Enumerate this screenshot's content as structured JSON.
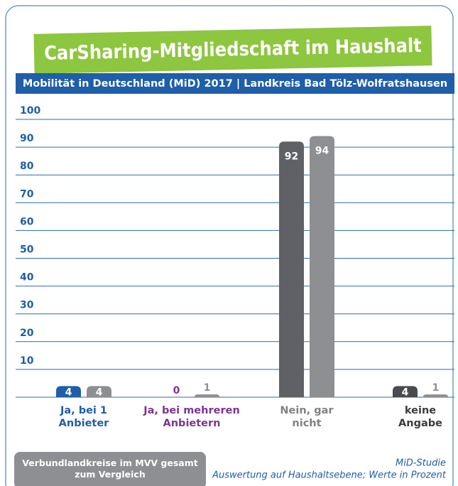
{
  "chart_data": {
    "type": "bar",
    "title": "CarSharing-Mitgliedschaft im Haushalt",
    "subtitle": "Mobilität in Deutschland (MiD) 2017 | Landkreis Bad Tölz-Wolfratshausen",
    "categories": [
      "Ja, bei 1 Anbieter",
      "Ja, bei mehreren Anbietern",
      "Nein, gar nicht",
      "keine Angabe"
    ],
    "category_colors": [
      "#1f5ea8",
      "#7b3594",
      "#808185",
      "#3c3c3e"
    ],
    "series": [
      {
        "colors": [
          "#1f5ea8",
          "#7b3594",
          "#5f6166",
          "#4a4b4e"
        ],
        "values": [
          4,
          0,
          92,
          4
        ]
      },
      {
        "name": "Verbundlandkreise im MVV gesamt zum Vergleich",
        "color": "#8e8f92",
        "values": [
          4,
          1,
          94,
          1
        ]
      }
    ],
    "ylim": [
      0,
      100
    ],
    "yticks": [
      10,
      20,
      30,
      40,
      50,
      60,
      70,
      80,
      90,
      100
    ],
    "grid": true,
    "source": "MiD-Studie",
    "note": "Auswertung auf Haushaltsebene; Werte in Prozent"
  }
}
